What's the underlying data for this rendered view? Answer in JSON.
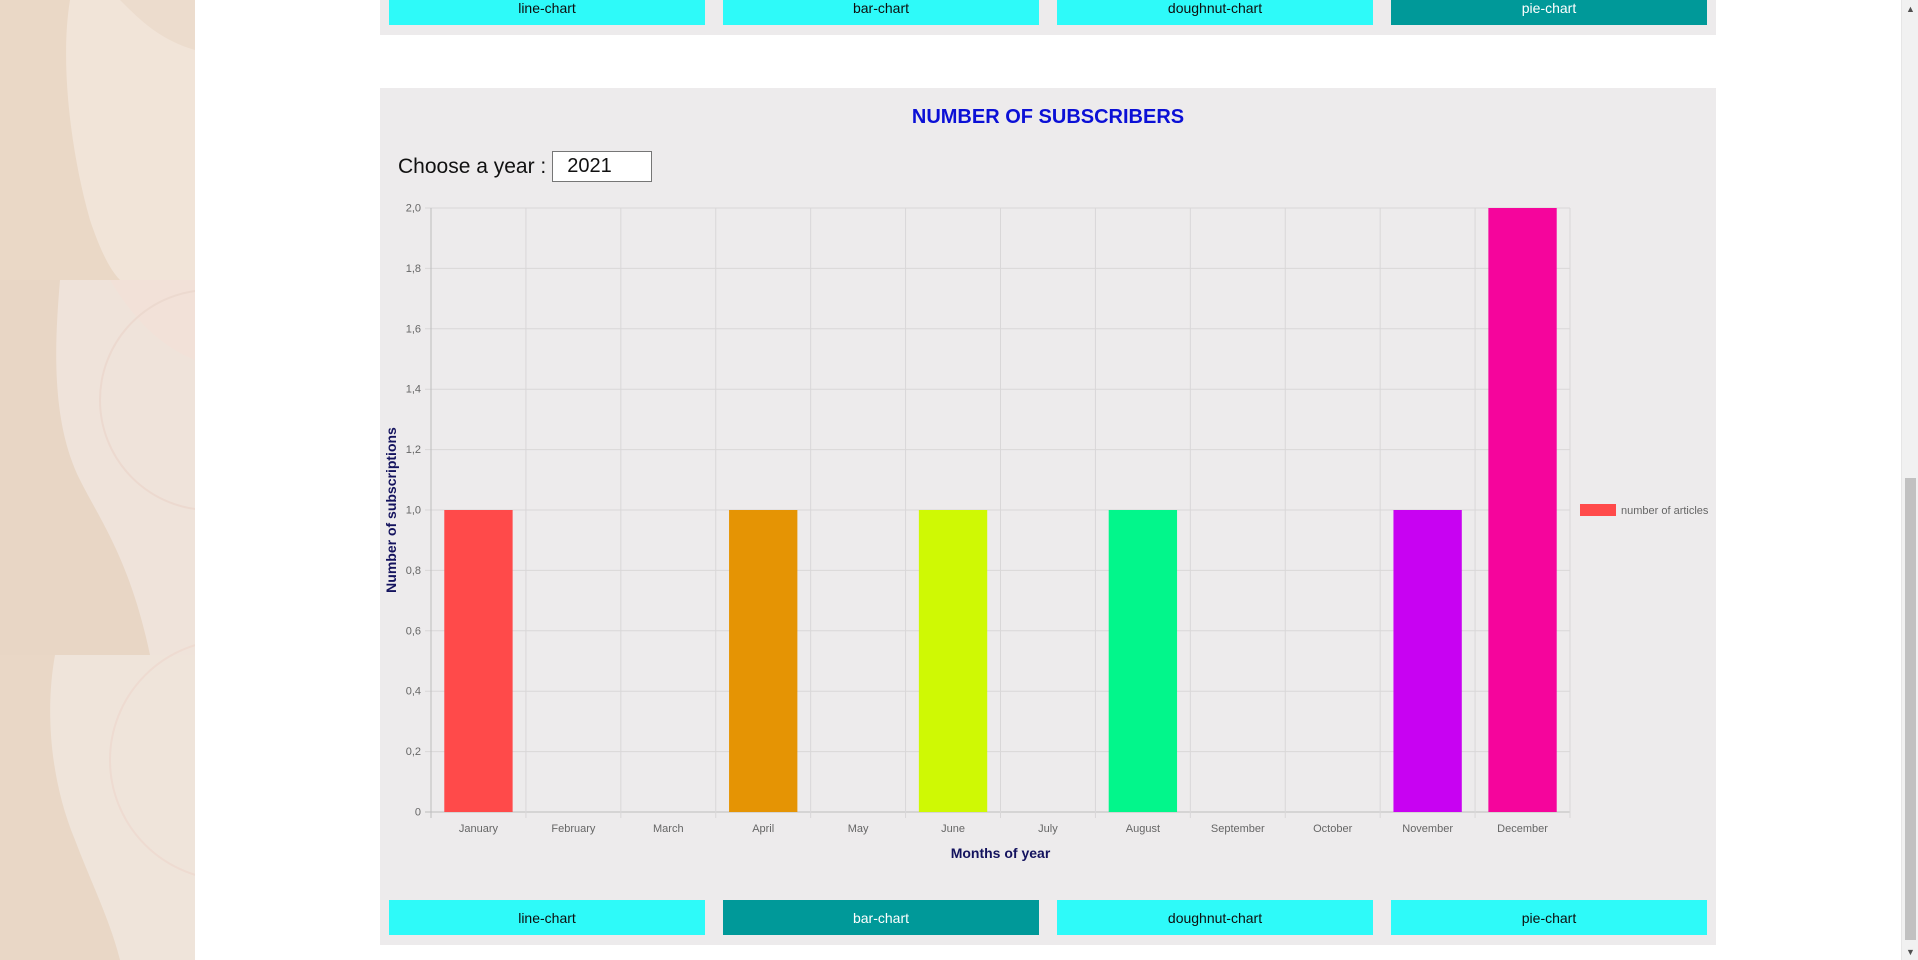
{
  "top_buttons": [
    {
      "label": "line-chart",
      "active": false
    },
    {
      "label": "bar-chart",
      "active": false
    },
    {
      "label": "doughnut-chart",
      "active": false
    },
    {
      "label": "pie-chart",
      "active": true
    }
  ],
  "bottom_buttons": [
    {
      "label": "line-chart",
      "active": false
    },
    {
      "label": "bar-chart",
      "active": true
    },
    {
      "label": "doughnut-chart",
      "active": false
    },
    {
      "label": "pie-chart",
      "active": false
    }
  ],
  "section": {
    "title": "NUMBER OF SUBSCRIBERS",
    "year_label": "Choose a year :",
    "year_value": "2021"
  },
  "colors": {
    "title": "#0b10d6",
    "button": "#2efaf9",
    "button_active": "#009999",
    "panel": "#edebec",
    "axis_title": "#14135e"
  },
  "chart_data": {
    "type": "bar",
    "categories": [
      "January",
      "February",
      "March",
      "April",
      "May",
      "June",
      "July",
      "August",
      "September",
      "October",
      "November",
      "December"
    ],
    "series": [
      {
        "name": "number of articles",
        "values": [
          1,
          0,
          0,
          1,
          0,
          1,
          0,
          1,
          0,
          0,
          1,
          2
        ]
      }
    ],
    "bar_colors": [
      "#ff4a4a",
      "#ff4a4a",
      "#ff4a4a",
      "#e59404",
      "#e59404",
      "#cff904",
      "#cff904",
      "#02f68b",
      "#02f68b",
      "#02f68b",
      "#c802f2",
      "#f5059c"
    ],
    "legend_color": "#ff4a4a",
    "xlabel": "Months of year",
    "ylabel": "Number of subscriptions",
    "ylim": [
      0,
      2
    ],
    "yticks": [
      "0",
      "0,2",
      "0,4",
      "0,6",
      "0,8",
      "1,0",
      "1,2",
      "1,4",
      "1,6",
      "1,8",
      "2,0"
    ],
    "grid": true,
    "legend": "right"
  }
}
